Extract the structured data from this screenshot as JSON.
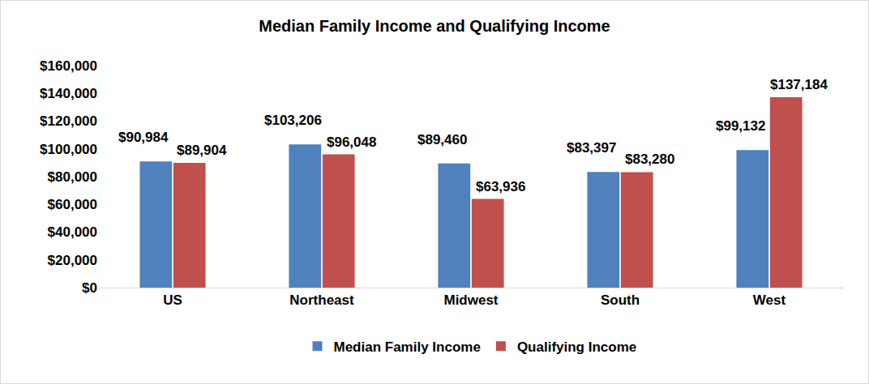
{
  "chart_data": {
    "type": "bar",
    "title": "Median Family Income and Qualifying Income",
    "categories": [
      "US",
      "Northeast",
      "Midwest",
      "South",
      "West"
    ],
    "series": [
      {
        "name": "Median Family Income",
        "color": "#4f81bd",
        "values": [
          90984,
          103206,
          89460,
          83397,
          99132
        ],
        "value_labels": [
          "$90,984",
          "$103,206",
          "$89,460",
          "$83,397",
          "$99,132"
        ]
      },
      {
        "name": "Qualifying Income",
        "color": "#c0504d",
        "values": [
          89904,
          96048,
          63936,
          83280,
          137184
        ],
        "value_labels": [
          "$89,904",
          "$96,048",
          "$63,936",
          "$83,280",
          "$137,184"
        ]
      }
    ],
    "ylim": [
      0,
      160000
    ],
    "yticks": [
      {
        "value": 0,
        "label": "$0"
      },
      {
        "value": 20000,
        "label": "$20,000"
      },
      {
        "value": 40000,
        "label": "$40,000"
      },
      {
        "value": 60000,
        "label": "$60,000"
      },
      {
        "value": 80000,
        "label": "$80,000"
      },
      {
        "value": 100000,
        "label": "$100,000"
      },
      {
        "value": 120000,
        "label": "$120,000"
      },
      {
        "value": 140000,
        "label": "$140,000"
      },
      {
        "value": 160000,
        "label": "$160,000"
      }
    ],
    "grid": false,
    "legend": "bottom",
    "data_labels": true
  }
}
